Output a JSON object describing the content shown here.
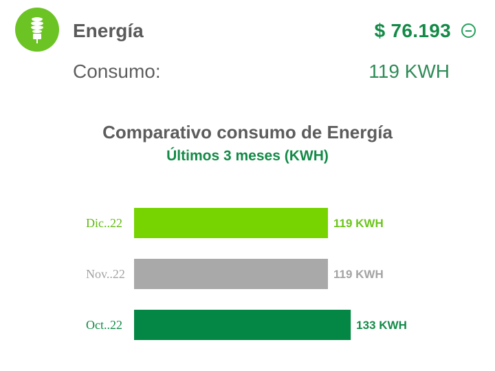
{
  "header": {
    "icon": "lightbulb-icon",
    "title": "Energía",
    "amount": "$ 76.193",
    "collapse_icon": "minus-circle-icon"
  },
  "consumo": {
    "label": "Consumo:",
    "value": "119 KWH"
  },
  "chart_data": {
    "type": "bar",
    "orientation": "horizontal",
    "title": "Comparativo consumo de Energía",
    "subtitle": "Últimos 3 meses (KWH)",
    "categories": [
      "Dic..22",
      "Nov..22",
      "Oct..22"
    ],
    "values": [
      119,
      119,
      133
    ],
    "value_labels": [
      "119 KWH",
      "119 KWH",
      "133 KWH"
    ],
    "colors": [
      "#77d400",
      "#a9a9a9",
      "#048744"
    ],
    "label_colors": [
      "#62b90f",
      "#a3a3a3",
      "#138a47"
    ],
    "value_label_colors": [
      "#6cc51b",
      "#a3a3a3",
      "#138a47"
    ],
    "grid": false,
    "legend": "none"
  }
}
